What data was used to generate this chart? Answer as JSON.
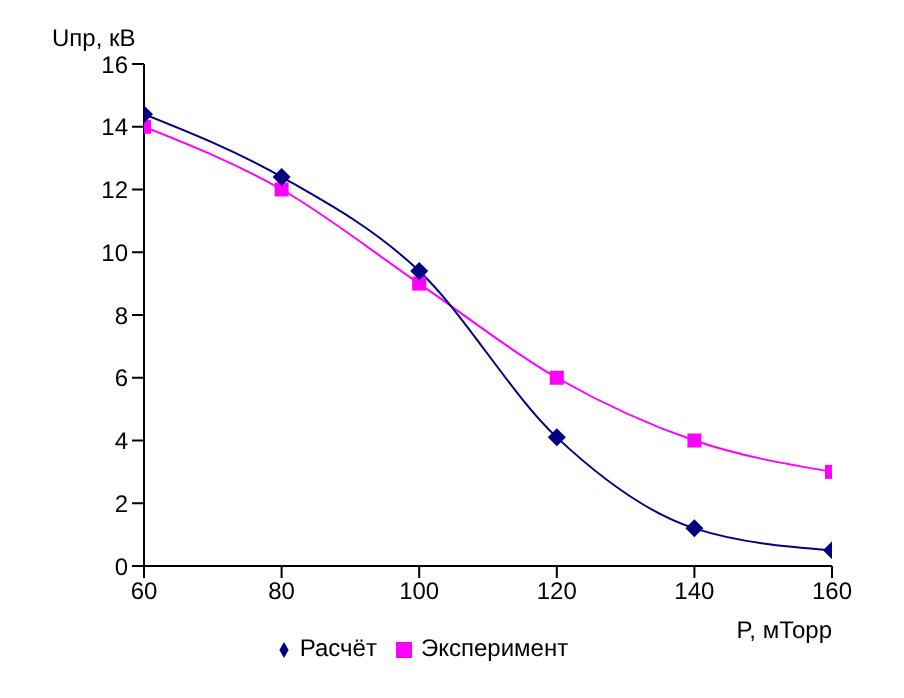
{
  "chart_data": {
    "type": "line",
    "xlabel": "P, мТорр",
    "ylabel": "Uпр, кВ",
    "x": [
      60,
      80,
      100,
      120,
      140,
      160
    ],
    "series": [
      {
        "name": "Эксперимент",
        "color": "#ff00ff",
        "marker": "square",
        "values": [
          14,
          12,
          9,
          6,
          4,
          3
        ]
      },
      {
        "name": "Расчёт",
        "color": "#000080",
        "marker": "diamond",
        "values": [
          14.4,
          12.4,
          9.4,
          4.1,
          1.2,
          0.5
        ]
      }
    ],
    "xlim": [
      60,
      160
    ],
    "xticks": [
      60,
      80,
      100,
      120,
      140,
      160
    ],
    "ylim": [
      0,
      16
    ],
    "yticks": [
      0,
      2,
      4,
      6,
      8,
      10,
      12,
      14,
      16
    ],
    "grid": false,
    "legend": "bottom"
  }
}
